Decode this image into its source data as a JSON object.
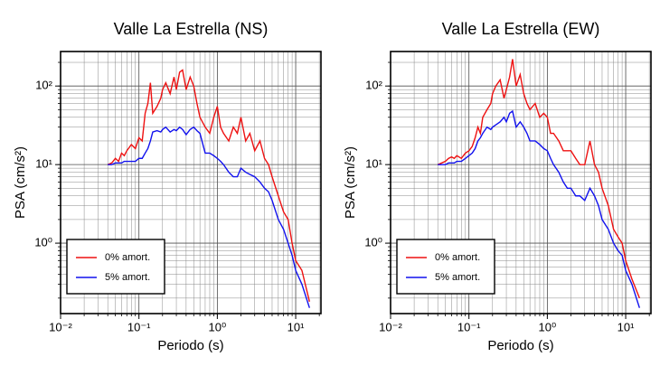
{
  "chart_data": [
    {
      "type": "line",
      "title": "Valle La Estrella (NS)",
      "xlabel": "Periodo (s)",
      "ylabel": "PSA (cm/s²)",
      "log_x": true,
      "log_y": true,
      "grid": true,
      "minor_grid": true,
      "legend": "lower left",
      "xlim": [
        0.01,
        21
      ],
      "ylim": [
        0.127,
        275
      ],
      "xticks": [
        {
          "value": 0.01,
          "label": "10⁻²"
        },
        {
          "value": 0.1,
          "label": "10⁻¹"
        },
        {
          "value": 1,
          "label": "10⁰"
        },
        {
          "value": 10,
          "label": "10¹"
        }
      ],
      "yticks": [
        {
          "value": 1,
          "label": "10⁰"
        },
        {
          "value": 10,
          "label": "10¹"
        },
        {
          "value": 100,
          "label": "10²"
        }
      ],
      "x": [
        0.04,
        0.045,
        0.05,
        0.055,
        0.06,
        0.065,
        0.07,
        0.08,
        0.09,
        0.1,
        0.11,
        0.12,
        0.13,
        0.14,
        0.15,
        0.17,
        0.19,
        0.2,
        0.22,
        0.25,
        0.28,
        0.3,
        0.33,
        0.36,
        0.4,
        0.45,
        0.5,
        0.55,
        0.6,
        0.7,
        0.8,
        0.9,
        1.0,
        1.1,
        1.2,
        1.4,
        1.6,
        1.8,
        2.0,
        2.3,
        2.6,
        3.0,
        3.5,
        4.0,
        4.5,
        5.0,
        6.0,
        7.0,
        8.0,
        9.0,
        10,
        12,
        15
      ],
      "series": [
        {
          "name": "0% amort.",
          "color": "#ee1111",
          "values": [
            10,
            10.5,
            12,
            11,
            14,
            13,
            15,
            18,
            16,
            22,
            20,
            45,
            60,
            110,
            45,
            55,
            70,
            90,
            110,
            80,
            130,
            90,
            150,
            160,
            90,
            130,
            100,
            60,
            40,
            30,
            25,
            40,
            55,
            30,
            25,
            20,
            30,
            25,
            40,
            20,
            25,
            15,
            20,
            12,
            10,
            7,
            4,
            2.5,
            2,
            1,
            0.6,
            0.45,
            0.18
          ]
        },
        {
          "name": "5% amort.",
          "color": "#1111ee",
          "values": [
            10,
            10,
            10.5,
            10.5,
            10.5,
            11,
            11,
            11,
            11,
            12,
            12,
            14,
            16,
            20,
            26,
            27,
            26,
            28,
            30,
            26,
            28,
            27,
            30,
            28,
            24,
            28,
            30,
            27,
            25,
            14,
            14,
            13,
            12,
            11,
            10,
            8,
            7,
            7,
            9,
            8,
            7.5,
            7,
            6,
            5,
            4.5,
            3.5,
            2,
            1.5,
            1,
            0.7,
            0.45,
            0.3,
            0.15
          ]
        }
      ]
    },
    {
      "type": "line",
      "title": "Valle La Estrella (EW)",
      "xlabel": "Periodo (s)",
      "ylabel": "PSA (cm/s²)",
      "log_x": true,
      "log_y": true,
      "grid": true,
      "minor_grid": true,
      "legend": "lower left",
      "xlim": [
        0.01,
        21
      ],
      "ylim": [
        0.127,
        275
      ],
      "xticks": [
        {
          "value": 0.01,
          "label": "10⁻²"
        },
        {
          "value": 0.1,
          "label": "10⁻¹"
        },
        {
          "value": 1,
          "label": "10⁰"
        },
        {
          "value": 10,
          "label": "10¹"
        }
      ],
      "yticks": [
        {
          "value": 1,
          "label": "10⁰"
        },
        {
          "value": 10,
          "label": "10¹"
        },
        {
          "value": 100,
          "label": "10²"
        }
      ],
      "x": [
        0.04,
        0.045,
        0.05,
        0.055,
        0.06,
        0.065,
        0.07,
        0.08,
        0.09,
        0.1,
        0.11,
        0.12,
        0.13,
        0.14,
        0.15,
        0.17,
        0.19,
        0.2,
        0.22,
        0.25,
        0.28,
        0.3,
        0.33,
        0.36,
        0.4,
        0.45,
        0.5,
        0.55,
        0.6,
        0.7,
        0.8,
        0.9,
        1.0,
        1.1,
        1.2,
        1.4,
        1.6,
        1.8,
        2.0,
        2.3,
        2.6,
        3.0,
        3.5,
        4.0,
        4.5,
        5.0,
        6.0,
        7.0,
        8.0,
        9.0,
        10,
        12,
        15
      ],
      "series": [
        {
          "name": "0% amort.",
          "color": "#ee1111",
          "values": [
            10,
            10.5,
            11,
            12,
            12.5,
            12,
            13,
            12,
            14,
            15,
            17,
            22,
            30,
            25,
            40,
            50,
            60,
            80,
            100,
            120,
            70,
            90,
            130,
            220,
            100,
            140,
            80,
            60,
            50,
            60,
            40,
            45,
            40,
            25,
            25,
            20,
            15,
            15,
            15,
            12,
            10,
            10,
            20,
            10,
            8,
            5,
            3,
            1.5,
            1.2,
            1,
            0.6,
            0.35,
            0.2
          ]
        },
        {
          "name": "5% amort.",
          "color": "#1111ee",
          "values": [
            10,
            10,
            10,
            10.5,
            10.5,
            10.5,
            11,
            11,
            12,
            13,
            14,
            16,
            20,
            22,
            25,
            30,
            28,
            30,
            32,
            35,
            40,
            35,
            45,
            48,
            30,
            35,
            30,
            25,
            20,
            20,
            18,
            16,
            15,
            12,
            10,
            8,
            6,
            5,
            5,
            4,
            4,
            3.5,
            5,
            4,
            3,
            2,
            1.5,
            1,
            0.8,
            0.7,
            0.45,
            0.3,
            0.15
          ]
        }
      ]
    }
  ]
}
